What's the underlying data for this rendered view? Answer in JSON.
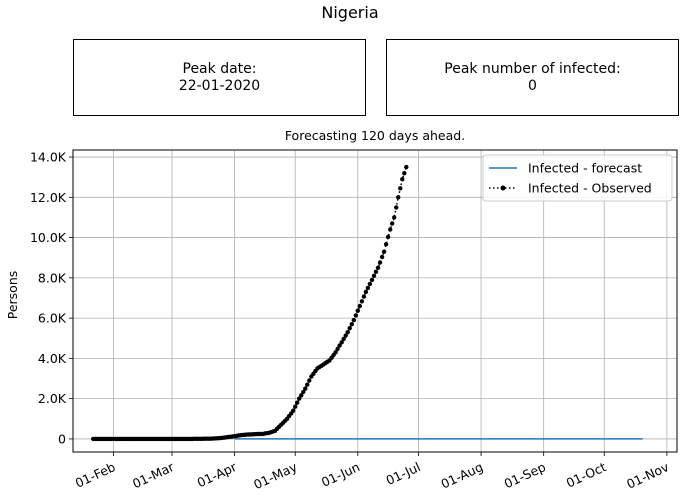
{
  "suptitle": "Nigeria",
  "peak_box": {
    "label": "Peak date:",
    "value": "22-01-2020"
  },
  "infected_box": {
    "label": "Peak number of infected:",
    "value": "0"
  },
  "chart_data": {
    "type": "line",
    "title": "Forecasting 120 days ahead.",
    "xlabel": "",
    "ylabel": "Persons",
    "x_range": [
      "2020-01-12",
      "2020-11-06"
    ],
    "ylim": [
      -650,
      14350
    ],
    "x_ticks": [
      {
        "date": "2020-02-01",
        "label": "01-Feb"
      },
      {
        "date": "2020-03-01",
        "label": "01-Mar"
      },
      {
        "date": "2020-04-01",
        "label": "01-Apr"
      },
      {
        "date": "2020-05-01",
        "label": "01-May"
      },
      {
        "date": "2020-06-01",
        "label": "01-Jun"
      },
      {
        "date": "2020-07-01",
        "label": "01-Jul"
      },
      {
        "date": "2020-08-01",
        "label": "01-Aug"
      },
      {
        "date": "2020-09-01",
        "label": "01-Sep"
      },
      {
        "date": "2020-10-01",
        "label": "01-Oct"
      },
      {
        "date": "2020-11-01",
        "label": "01-Nov"
      }
    ],
    "y_ticks": [
      {
        "value": 0,
        "label": "0"
      },
      {
        "value": 2000,
        "label": "2.0K"
      },
      {
        "value": 4000,
        "label": "4.0K"
      },
      {
        "value": 6000,
        "label": "6.0K"
      },
      {
        "value": 8000,
        "label": "8.0K"
      },
      {
        "value": 10000,
        "label": "10.0K"
      },
      {
        "value": 12000,
        "label": "12.0K"
      },
      {
        "value": 14000,
        "label": "14.0K"
      }
    ],
    "grid": true,
    "legend_position": "top-right",
    "series": [
      {
        "name": "Infected - forecast",
        "style": "solid-line",
        "color": "#1f77b4",
        "points": [
          [
            "2020-04-01",
            0
          ],
          [
            "2020-10-20",
            0
          ]
        ]
      },
      {
        "name": "Infected - Observed",
        "style": "dotted-with-markers",
        "color": "#000000",
        "points": [
          [
            "2020-01-22",
            0
          ],
          [
            "2020-02-01",
            0
          ],
          [
            "2020-02-15",
            0
          ],
          [
            "2020-03-01",
            0
          ],
          [
            "2020-03-10",
            2
          ],
          [
            "2020-03-20",
            12
          ],
          [
            "2020-03-25",
            40
          ],
          [
            "2020-03-31",
            120
          ],
          [
            "2020-04-05",
            200
          ],
          [
            "2020-04-10",
            230
          ],
          [
            "2020-04-15",
            250
          ],
          [
            "2020-04-18",
            300
          ],
          [
            "2020-04-21",
            400
          ],
          [
            "2020-04-24",
            700
          ],
          [
            "2020-04-27",
            1000
          ],
          [
            "2020-04-30",
            1400
          ],
          [
            "2020-05-03",
            2000
          ],
          [
            "2020-05-06",
            2500
          ],
          [
            "2020-05-09",
            3100
          ],
          [
            "2020-05-12",
            3500
          ],
          [
            "2020-05-15",
            3700
          ],
          [
            "2020-05-18",
            3900
          ],
          [
            "2020-05-21",
            4300
          ],
          [
            "2020-05-24",
            4800
          ],
          [
            "2020-05-27",
            5300
          ],
          [
            "2020-05-30",
            5900
          ],
          [
            "2020-06-02",
            6600
          ],
          [
            "2020-06-05",
            7300
          ],
          [
            "2020-06-08",
            7900
          ],
          [
            "2020-06-11",
            8500
          ],
          [
            "2020-06-14",
            9300
          ],
          [
            "2020-06-17",
            10400
          ],
          [
            "2020-06-19",
            11000
          ],
          [
            "2020-06-21",
            12000
          ],
          [
            "2020-06-23",
            12900
          ],
          [
            "2020-06-25",
            13500
          ]
        ]
      }
    ]
  }
}
